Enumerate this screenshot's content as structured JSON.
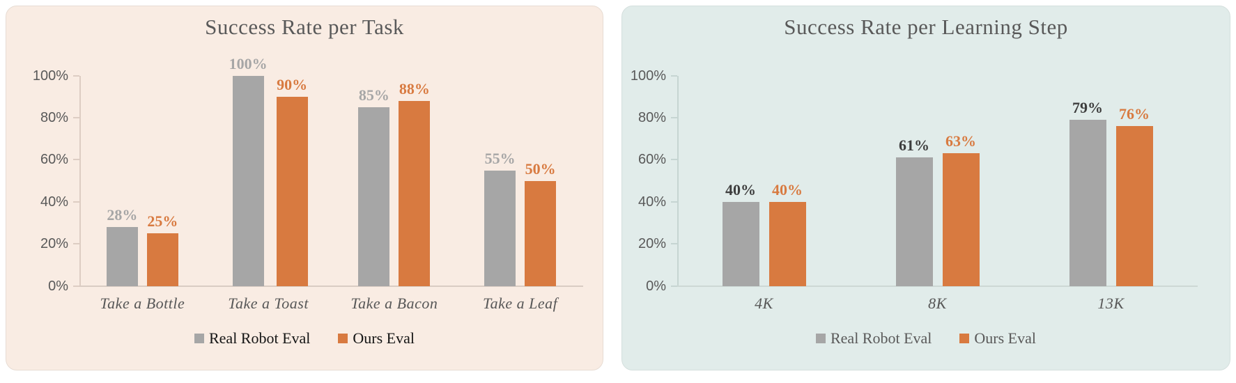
{
  "figure": {
    "background": "#ffffff"
  },
  "chart_data": [
    {
      "type": "bar",
      "title": "Success Rate per Task",
      "categories": [
        "Take a Bottle",
        "Take a Toast",
        "Take a Bacon",
        "Take a Leaf"
      ],
      "series": [
        {
          "name": "Real Robot Eval",
          "values": [
            28,
            100,
            85,
            55
          ],
          "labels": [
            "28%",
            "100%",
            "85%",
            "55%"
          ],
          "bar_color": "#a6a6a6",
          "label_color": "#a6a6a6"
        },
        {
          "name": "Ours Eval",
          "values": [
            25,
            90,
            88,
            50
          ],
          "labels": [
            "25%",
            "90%",
            "88%",
            "50%"
          ],
          "bar_color": "#d87a40",
          "label_color": "#d87a40"
        }
      ],
      "y_axis": {
        "tick_labels": [
          "0%",
          "20%",
          "40%",
          "60%",
          "80%",
          "100%"
        ],
        "tick_values": [
          0,
          20,
          40,
          60,
          80,
          100
        ],
        "min": 0,
        "max": 100
      },
      "grid": false,
      "legend": {
        "position": "bottom",
        "items": [
          "Real Robot Eval",
          "Ours Eval"
        ],
        "text_color": "#141414"
      },
      "colors": {
        "panel_bg": "#f9ece3",
        "title": "#595959",
        "axis": "#ddcdc3",
        "baseline": "#d9ccc3",
        "tick_label": "#595959",
        "category_label": "#575757"
      }
    },
    {
      "type": "bar",
      "title": "Success Rate per Learning Step",
      "categories": [
        "4K",
        "8K",
        "13K"
      ],
      "series": [
        {
          "name": "Real Robot Eval",
          "values": [
            40,
            61,
            79
          ],
          "labels": [
            "40%",
            "61%",
            "79%"
          ],
          "bar_color": "#a6a6a6",
          "label_color": "#3d3d3d"
        },
        {
          "name": "Ours Eval",
          "values": [
            40,
            63,
            76
          ],
          "labels": [
            "40%",
            "63%",
            "76%"
          ],
          "bar_color": "#d87a40",
          "label_color": "#d87a40"
        }
      ],
      "y_axis": {
        "tick_labels": [
          "0%",
          "20%",
          "40%",
          "60%",
          "80%",
          "100%"
        ],
        "tick_values": [
          0,
          20,
          40,
          60,
          80,
          100
        ],
        "min": 0,
        "max": 100
      },
      "grid": false,
      "legend": {
        "position": "bottom",
        "items": [
          "Real Robot Eval",
          "Ours Eval"
        ],
        "text_color": "#595959"
      },
      "colors": {
        "panel_bg": "#e1ecea",
        "title": "#595959",
        "axis": "#c6d5d2",
        "baseline": "#cdd8d5",
        "tick_label": "#595959",
        "category_label": "#575757"
      }
    }
  ]
}
